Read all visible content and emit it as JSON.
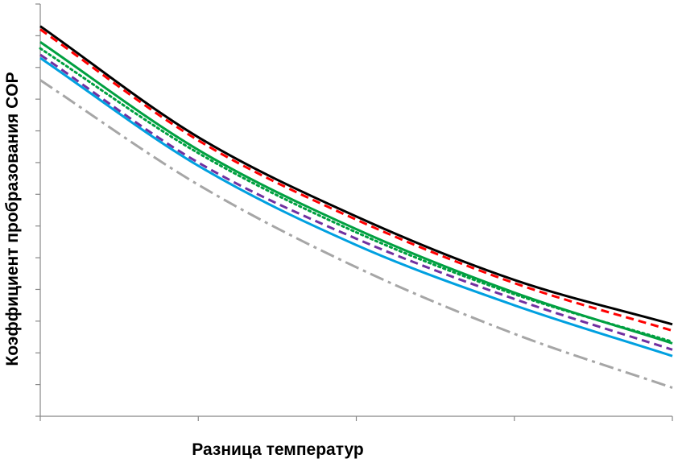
{
  "chart_data": {
    "type": "line",
    "title": "",
    "xlabel": "Разница температур",
    "ylabel": "Коэффициент пробразования COP",
    "xlim": [
      0,
      4
    ],
    "ylim": [
      0,
      13
    ],
    "x_ticks": 4,
    "y_ticks": 13,
    "grid": false,
    "legend": "none",
    "series": [
      {
        "color": "#000000",
        "dash": "solid",
        "values": [
          12.3,
          8.8,
          6.3,
          4.3,
          2.9
        ]
      },
      {
        "color": "#ff0000",
        "dash": "dash",
        "values": [
          12.2,
          8.7,
          6.2,
          4.2,
          2.7
        ]
      },
      {
        "color": "#00a040",
        "dash": "solid",
        "values": [
          11.8,
          8.4,
          5.9,
          3.9,
          2.3
        ]
      },
      {
        "color": "#00a040",
        "dash": "dot",
        "values": [
          11.6,
          8.3,
          5.8,
          3.85,
          2.35
        ]
      },
      {
        "color": "#7030a0",
        "dash": "dash",
        "values": [
          11.4,
          8.0,
          5.6,
          3.7,
          2.1
        ]
      },
      {
        "color": "#00a0e0",
        "dash": "solid",
        "values": [
          11.3,
          7.9,
          5.4,
          3.5,
          1.9
        ]
      },
      {
        "color": "#a6a6a6",
        "dash": "dashdot",
        "values": [
          10.6,
          7.3,
          4.7,
          2.6,
          0.9
        ]
      }
    ]
  }
}
